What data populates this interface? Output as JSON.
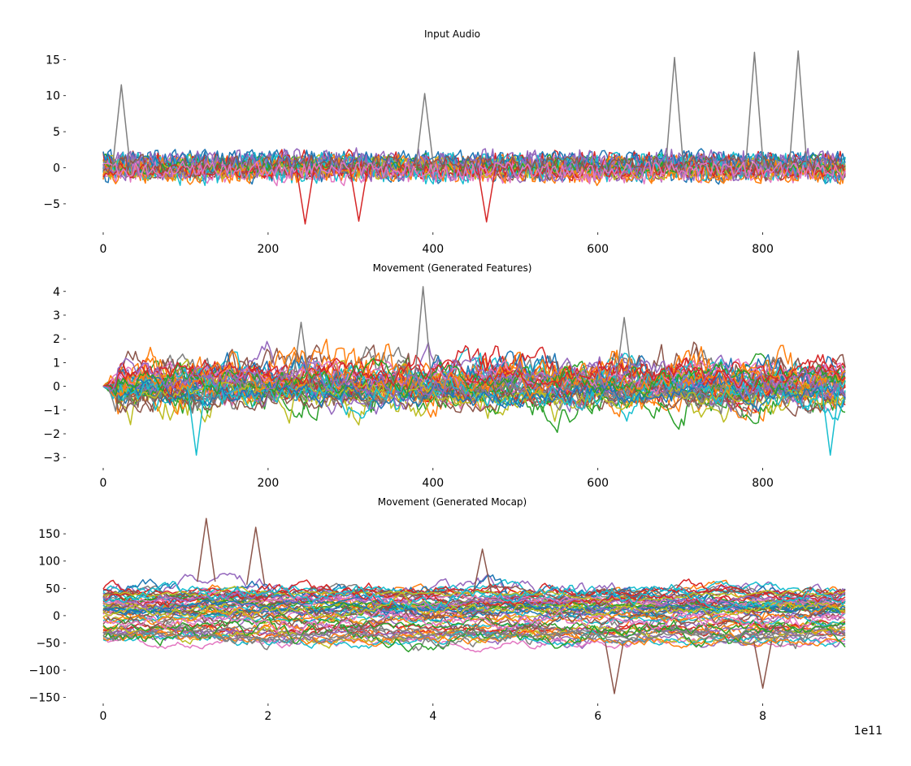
{
  "chart_data": [
    {
      "type": "line",
      "title": "Input Audio",
      "xlabel": "",
      "ylabel": "",
      "xlim": [
        0,
        900
      ],
      "ylim": [
        -8.5,
        16.5
      ],
      "x_ticks": [
        "0",
        "200",
        "400",
        "600",
        "800"
      ],
      "x_tick_values": [
        0,
        200,
        400,
        600,
        800
      ],
      "y_ticks": [
        "15",
        "10",
        "5",
        "0",
        "−5"
      ],
      "y_tick_values": [
        15,
        10,
        5,
        0,
        -5
      ],
      "grid": false,
      "legend": "none",
      "series_colors": [
        "#1f77b4",
        "#ff7f0e",
        "#2ca02c",
        "#d62728",
        "#9467bd",
        "#8c564b",
        "#e377c2",
        "#7f7f7f",
        "#bcbd22",
        "#17becf"
      ],
      "series_count": 27,
      "x_range": [
        0,
        900
      ],
      "typical_band": [
        -1.5,
        3
      ],
      "notable_peaks": [
        {
          "x": 22,
          "y": 11.5
        },
        {
          "x": 390,
          "y": 10.3
        },
        {
          "x": 693,
          "y": 15.3
        },
        {
          "x": 790,
          "y": 16.0
        },
        {
          "x": 843,
          "y": 16.2
        }
      ],
      "notable_troughs": [
        {
          "x": 245,
          "y": -7.8
        },
        {
          "x": 310,
          "y": -7.4
        },
        {
          "x": 465,
          "y": -7.5
        }
      ]
    },
    {
      "type": "line",
      "title": "Movement (Generated Features)",
      "xlabel": "",
      "ylabel": "",
      "xlim": [
        0,
        900
      ],
      "ylim": [
        -3.3,
        4.3
      ],
      "x_ticks": [
        "0",
        "200",
        "400",
        "600",
        "800"
      ],
      "x_tick_values": [
        0,
        200,
        400,
        600,
        800
      ],
      "y_ticks": [
        "4",
        "3",
        "2",
        "1",
        "0",
        "−1",
        "−2",
        "−3"
      ],
      "y_tick_values": [
        4,
        3,
        2,
        1,
        0,
        -1,
        -2,
        -3
      ],
      "grid": false,
      "legend": "none",
      "series_colors": [
        "#1f77b4",
        "#ff7f0e",
        "#2ca02c",
        "#d62728",
        "#9467bd",
        "#8c564b",
        "#e377c2",
        "#7f7f7f",
        "#bcbd22",
        "#17becf"
      ],
      "series_count": 45,
      "x_range": [
        0,
        900
      ],
      "typical_band": [
        -1.5,
        1.5
      ],
      "notable_peaks": [
        {
          "x": 388,
          "y": 4.2
        },
        {
          "x": 240,
          "y": 2.7
        },
        {
          "x": 632,
          "y": 2.9
        }
      ],
      "notable_troughs": [
        {
          "x": 113,
          "y": -2.9
        },
        {
          "x": 882,
          "y": -2.9
        }
      ]
    },
    {
      "type": "line",
      "title": "Movement (Generated Mocap)",
      "xlabel": "",
      "ylabel": "",
      "xlim": [
        0,
        9.0
      ],
      "ylim": [
        -155,
        180
      ],
      "x_ticks": [
        "0",
        "2",
        "4",
        "6",
        "8"
      ],
      "x_tick_values": [
        0,
        2,
        4,
        6,
        8
      ],
      "x_offset_label": "1e11",
      "y_ticks": [
        "150",
        "100",
        "50",
        "0",
        "−50",
        "−100",
        "−150"
      ],
      "y_tick_values": [
        150,
        100,
        50,
        0,
        -50,
        -100,
        -150
      ],
      "grid": false,
      "legend": "none",
      "series_colors": [
        "#1f77b4",
        "#ff7f0e",
        "#2ca02c",
        "#d62728",
        "#9467bd",
        "#8c564b",
        "#e377c2",
        "#7f7f7f",
        "#bcbd22",
        "#17becf"
      ],
      "series_count": 60,
      "x_range": [
        0,
        9.0
      ],
      "typical_band": [
        -30,
        30
      ],
      "notable_peaks": [
        {
          "x": 1.25,
          "y": 178
        },
        {
          "x": 1.85,
          "y": 162
        },
        {
          "x": 4.6,
          "y": 122
        }
      ],
      "notable_troughs": [
        {
          "x": 6.2,
          "y": -143
        },
        {
          "x": 8.0,
          "y": -133
        }
      ]
    }
  ]
}
